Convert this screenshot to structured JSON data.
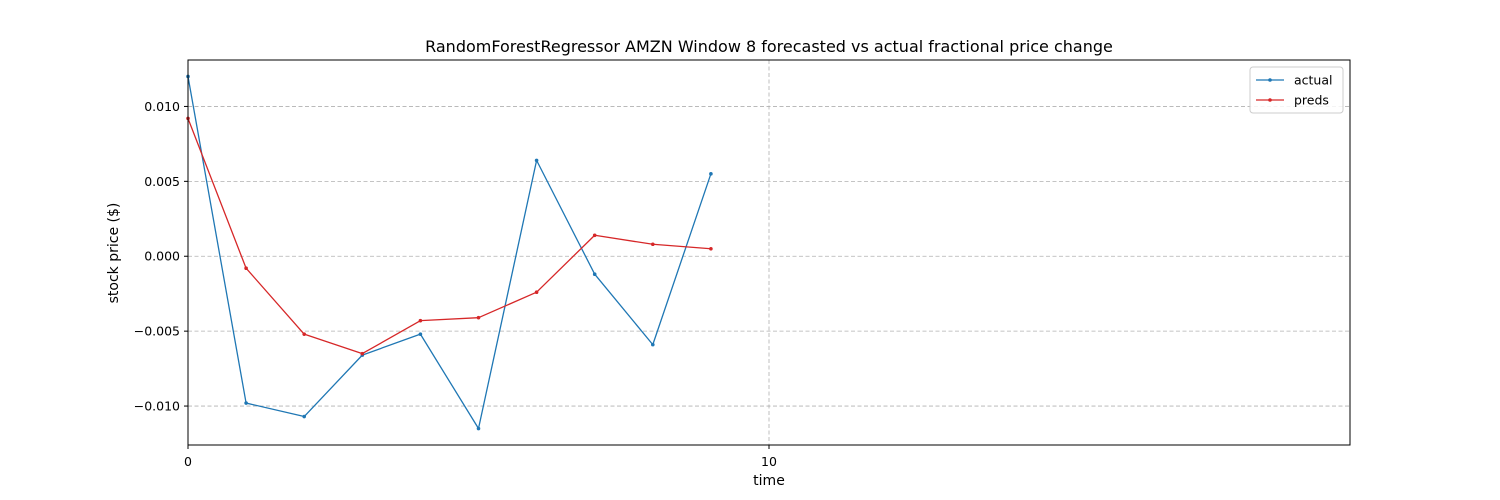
{
  "chart_data": {
    "type": "line",
    "title": "RandomForestRegressor AMZN Window 8 forecasted vs actual fractional price change",
    "xlabel": "time",
    "ylabel": "stock price ($)",
    "xlim": [
      0,
      20
    ],
    "ylim": [
      -0.0126,
      0.0131
    ],
    "x_ticks": [
      0,
      10
    ],
    "x_tick_labels": [
      "0",
      "10"
    ],
    "y_ticks": [
      0.01,
      0.005,
      0.0,
      -0.005,
      -0.01
    ],
    "y_tick_labels": [
      "0.010",
      "0.005",
      "0.000",
      "−0.005",
      "−0.010"
    ],
    "grid": true,
    "legend_position": "top-right",
    "x": [
      0,
      1,
      2,
      3,
      4,
      5,
      6,
      7,
      8,
      9
    ],
    "series": [
      {
        "name": "actual",
        "color": "#1f77b4",
        "values": [
          0.012,
          -0.0098,
          -0.0107,
          -0.0066,
          -0.0052,
          -0.0115,
          0.0064,
          -0.0012,
          -0.0059,
          0.0055
        ]
      },
      {
        "name": "preds",
        "color": "#d62728",
        "values": [
          0.0092,
          -0.0008,
          -0.0052,
          -0.0065,
          -0.0043,
          -0.0041,
          -0.0024,
          0.0014,
          0.0008,
          0.0005
        ]
      }
    ]
  }
}
